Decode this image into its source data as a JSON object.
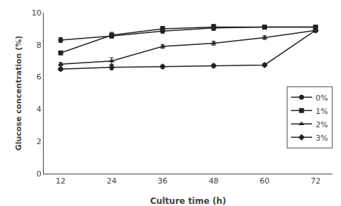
{
  "chart_data": {
    "type": "line",
    "xlabel": "Culture time (h)",
    "ylabel": "Glucose concentration (%)",
    "x": [
      12,
      24,
      36,
      48,
      60,
      72
    ],
    "series": [
      {
        "name": "0%",
        "values": [
          8.3,
          8.55,
          8.85,
          9.05,
          9.1,
          9.1
        ],
        "errors": [
          0.15,
          0.12,
          0.12,
          0.15,
          0.12,
          0.1
        ],
        "marker": "circle",
        "color": "#222222"
      },
      {
        "name": "1%",
        "values": [
          7.5,
          8.6,
          9.0,
          9.1,
          9.1,
          9.1
        ],
        "errors": [
          0.1,
          0.18,
          0.15,
          0.18,
          0.12,
          0.12
        ],
        "marker": "square",
        "color": "#222222"
      },
      {
        "name": "2%",
        "values": [
          6.8,
          7.0,
          7.9,
          8.1,
          8.45,
          8.9
        ],
        "errors": [
          0.1,
          0.2,
          0.12,
          0.12,
          0.12,
          0.1
        ],
        "marker": "triangle-up",
        "color": "#222222"
      },
      {
        "name": "3%",
        "values": [
          6.5,
          6.6,
          6.65,
          6.7,
          6.75,
          8.9
        ],
        "errors": [
          0.1,
          0.15,
          0.1,
          0.1,
          0.1,
          0.12
        ],
        "marker": "diamond",
        "color": "#222222"
      }
    ],
    "xlim": [
      8,
      76
    ],
    "ylim": [
      0,
      10
    ],
    "xticks": [
      12,
      24,
      36,
      48,
      60,
      72
    ],
    "yticks": [
      0,
      2,
      4,
      6,
      8,
      10
    ],
    "grid": false,
    "legend": "lower right"
  }
}
